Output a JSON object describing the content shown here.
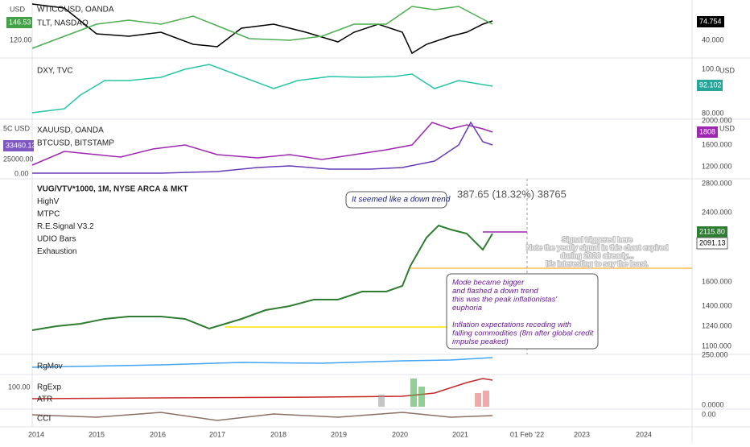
{
  "top": {
    "labels": [
      "WTICOUSD, OANDA",
      "TLT, NASDAQ"
    ],
    "left_unit": "USD",
    "left_tag": "146.53",
    "left_ticks": [
      "120.00"
    ],
    "right_tag": "74.754",
    "right_ticks": [
      "40.000"
    ]
  },
  "dxy": {
    "labels": [
      "DXY, TVC"
    ],
    "right_unit": "USD",
    "right_tag": "92.102",
    "right_ticks": [
      "100.0",
      "80.000"
    ]
  },
  "gold": {
    "labels": [
      "XAUUSD, OANDA",
      "BTCUSD, BITSTAMP"
    ],
    "left_unit": "5C USD",
    "left_tag": "33460.13",
    "left_ticks": [
      "25000.00",
      "0.00"
    ],
    "right_unit": "USD",
    "right_tag": "1808",
    "right_ticks": [
      "2000.000",
      "1600.000",
      "1200.000"
    ]
  },
  "main": {
    "labels": [
      "VUG/VTV*1000, 1M, NYSE ARCA & MKT",
      "HighV",
      "MTPC",
      "R.E.Signal V3.2",
      "UDIO Bars",
      "Exhaustion"
    ],
    "measure": "387.65 (18.32%) 38765",
    "right_tag": "2115.80",
    "right_tag2": "2091.13",
    "right_ticks": [
      "2800.000",
      "2400.000",
      "1600.000",
      "1400.000",
      "1240.000",
      "1100.000"
    ],
    "note1": "It seemed like a down trend",
    "note2": [
      "Signal triggered here",
      "Note the yearly signal in this chart expired",
      "during 2020 already...",
      "It's interesting to say the least."
    ],
    "note3": [
      "Mode became bigger",
      "and flashed a down trend",
      "this was the peak inflationistas'",
      "euphoria",
      "",
      "Inflation expectations receding with",
      "falling commodities (8m after global credit",
      "impulse peaked)"
    ]
  },
  "rgmov": {
    "label": "RgMov",
    "right_tick": "250.000"
  },
  "rgexp": {
    "labels": [
      "RgExp",
      "ATR"
    ],
    "left_tick": "100.00",
    "right_tick": "0.0000"
  },
  "cci": {
    "label": "CCI",
    "right_tick": "0.00"
  },
  "xaxis": [
    "2014",
    "2015",
    "2016",
    "2017",
    "2018",
    "2019",
    "2020",
    "2021",
    "01 Feb '22",
    "2023",
    "2024"
  ]
}
